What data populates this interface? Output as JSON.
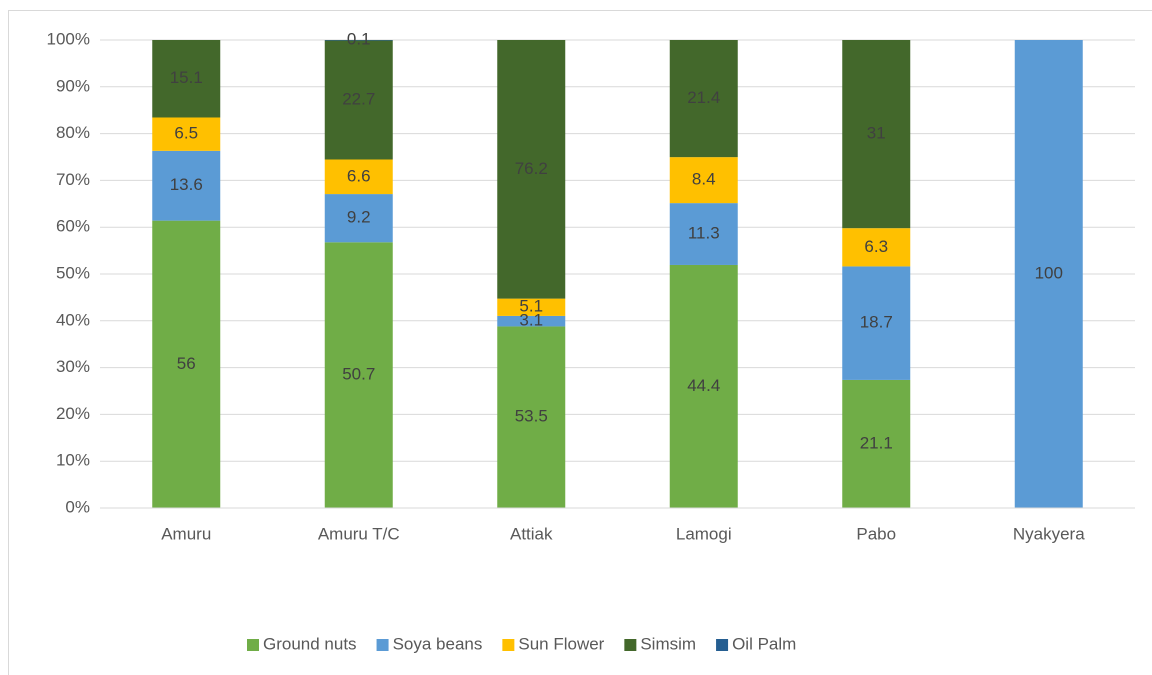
{
  "chart_data": {
    "type": "bar",
    "stacking": "percent",
    "categories": [
      "Amuru",
      "Amuru T/C",
      "Attiak",
      "Lamogi",
      "Pabo",
      "Nyakyera"
    ],
    "series": [
      {
        "name": "Ground nuts",
        "color": "#70ad47",
        "values": [
          56,
          50.7,
          53.5,
          44.4,
          21.1,
          null
        ]
      },
      {
        "name": "Soya beans",
        "color": "#5b9bd5",
        "values": [
          13.6,
          9.2,
          3.1,
          11.3,
          18.7,
          100
        ]
      },
      {
        "name": "Sun Flower",
        "color": "#ffc000",
        "values": [
          6.5,
          6.6,
          5.1,
          8.4,
          6.3,
          null
        ]
      },
      {
        "name": "Simsim",
        "color": "#43682b",
        "values": [
          15.1,
          22.7,
          76.2,
          21.4,
          31,
          null
        ]
      },
      {
        "name": "Oil Palm",
        "color": "#255e91",
        "values": [
          null,
          0.1,
          null,
          null,
          null,
          null
        ]
      }
    ],
    "ylim": [
      0,
      100
    ],
    "yticks": [
      {
        "value": 0,
        "label": "0%"
      },
      {
        "value": 10,
        "label": "10%"
      },
      {
        "value": 20,
        "label": "20%"
      },
      {
        "value": 30,
        "label": "30%"
      },
      {
        "value": 40,
        "label": "40%"
      },
      {
        "value": 50,
        "label": "50%"
      },
      {
        "value": 60,
        "label": "60%"
      },
      {
        "value": 70,
        "label": "70%"
      },
      {
        "value": 80,
        "label": "80%"
      },
      {
        "value": 90,
        "label": "90%"
      },
      {
        "value": 100,
        "label": "100%"
      }
    ],
    "grid": true,
    "data_labels": true,
    "legend": "bottom"
  }
}
